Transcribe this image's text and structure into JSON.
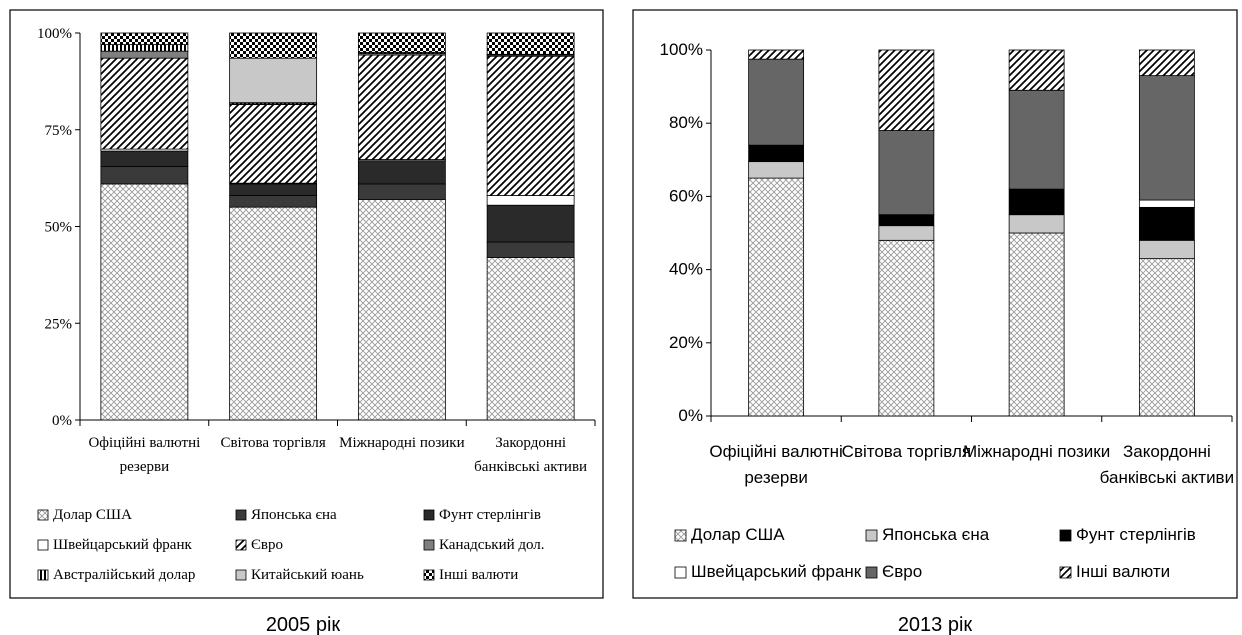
{
  "charts": [
    {
      "type": "bar",
      "stacked": true,
      "percent_stacked": true,
      "caption": "2005 рік",
      "ylim": [
        0,
        100
      ],
      "yticks": [
        "0%",
        "25%",
        "50%",
        "75%",
        "100%"
      ],
      "categories": [
        [
          "Офіційні валютні",
          "резерви"
        ],
        [
          "Світова торгівля"
        ],
        [
          "Міжнародні позики"
        ],
        [
          "Закордонні",
          "банківські активи"
        ]
      ],
      "series": [
        {
          "name": "Долар США",
          "pattern": "crosshatch-light",
          "values": [
            61,
            55,
            57,
            42
          ]
        },
        {
          "name": "Японська єна",
          "pattern": "dark-gray",
          "values": [
            4.5,
            3,
            4,
            4
          ]
        },
        {
          "name": "Фунт стерлінгів",
          "pattern": "darker-gray",
          "values": [
            4,
            3,
            6,
            9.5
          ]
        },
        {
          "name": "Швейцарський франк",
          "pattern": "white",
          "values": [
            0.5,
            0.2,
            0.3,
            2.5
          ]
        },
        {
          "name": "Євро",
          "pattern": "diagonal",
          "values": [
            23.5,
            20.3,
            27,
            36
          ]
        },
        {
          "name": "Канадський дол.",
          "pattern": "gray",
          "values": [
            1.8,
            0.2,
            0.4,
            0.3
          ]
        },
        {
          "name": "Австралійський долар",
          "pattern": "vertical-stripes",
          "values": [
            1.7,
            0.3,
            0.3,
            0.2
          ]
        },
        {
          "name": "Китайський юань",
          "pattern": "light-gray",
          "values": [
            0,
            11.5,
            0,
            0
          ]
        },
        {
          "name": "Інші валюти",
          "pattern": "checker",
          "values": [
            3,
            6.5,
            5,
            5.5
          ]
        }
      ],
      "legend": [
        [
          "Долар США",
          "Японська єна",
          "Фунт стерлінгів"
        ],
        [
          "Швейцарський франк",
          "Євро",
          "Канадський дол."
        ],
        [
          "Австралійський долар",
          "Китайський юань",
          "Інші валюти"
        ]
      ]
    },
    {
      "type": "bar",
      "stacked": true,
      "percent_stacked": true,
      "caption": "2013 рік",
      "ylim": [
        0,
        100
      ],
      "yticks": [
        "0%",
        "20%",
        "40%",
        "60%",
        "80%",
        "100%"
      ],
      "categories": [
        [
          "Офіційні валютні",
          "резерви"
        ],
        [
          "Світова торгівля"
        ],
        [
          "Міжнародні позики"
        ],
        [
          "Закордонні",
          "банківські активи"
        ]
      ],
      "series": [
        {
          "name": "Долар США",
          "pattern": "crosshatch-light",
          "values": [
            65,
            48,
            50,
            43
          ]
        },
        {
          "name": "Японська єна",
          "pattern": "light-gray",
          "values": [
            4.5,
            4,
            5,
            5
          ]
        },
        {
          "name": "Фунт стерлінгів",
          "pattern": "black",
          "values": [
            4.5,
            3,
            7,
            9
          ]
        },
        {
          "name": "Швейцарський франк",
          "pattern": "white",
          "values": [
            0,
            0,
            0,
            2
          ]
        },
        {
          "name": "Євро",
          "pattern": "medium-gray",
          "values": [
            23.5,
            23,
            27,
            34
          ]
        },
        {
          "name": "Інші валюти",
          "pattern": "diagonal",
          "values": [
            2.5,
            22,
            11,
            7
          ]
        }
      ],
      "legend": [
        [
          "Долар США",
          "Японська єна",
          "Фунт стерлінгів"
        ],
        [
          "Швейцарський франк",
          "Євро",
          "Інші валюти"
        ]
      ]
    }
  ]
}
